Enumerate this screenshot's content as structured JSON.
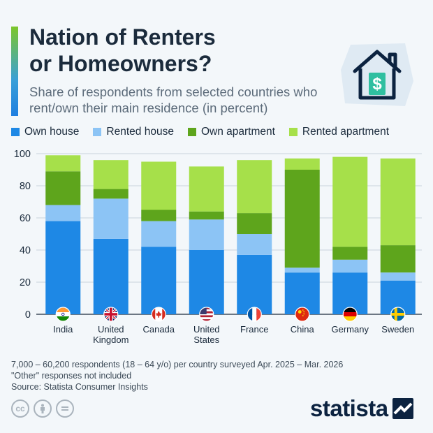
{
  "header": {
    "title": "Nation of Renters\nor Homeowners?",
    "subtitle": "Share of respondents from selected countries who rent/own their main residence (in percent)"
  },
  "icons": {
    "house": "house-dollar-icon",
    "brand": "statista-logo-icon"
  },
  "footer": {
    "note_line1": "7,000 – 60,200 respondents (18 – 64 y/o) per country surveyed Apr. 2025 – Mar. 2026",
    "note_line2": "\"Other\" responses not included",
    "source": "Source: Statista Consumer Insights",
    "brand": "statista",
    "license_icons": [
      "cc-icon",
      "by-icon",
      "nd-icon"
    ]
  },
  "chart_data": {
    "type": "bar",
    "stacked": true,
    "categories": [
      "India",
      "United\nKingdom",
      "Canada",
      "United\nStates",
      "France",
      "China",
      "Germany",
      "Sweden"
    ],
    "flags": [
      "india-flag-icon",
      "uk-flag-icon",
      "canada-flag-icon",
      "usa-flag-icon",
      "france-flag-icon",
      "china-flag-icon",
      "germany-flag-icon",
      "sweden-flag-icon"
    ],
    "series": [
      {
        "name": "Own house",
        "color": "#1e88e5",
        "values": [
          58,
          47,
          42,
          40,
          37,
          26,
          26,
          21
        ]
      },
      {
        "name": "Rented house",
        "color": "#8cc4f5",
        "values": [
          10,
          25,
          16,
          19,
          13,
          3,
          8,
          5
        ]
      },
      {
        "name": "Own apartment",
        "color": "#5ea51c",
        "values": [
          21,
          6,
          7,
          5,
          13,
          61,
          8,
          17
        ]
      },
      {
        "name": "Rented apartment",
        "color": "#a6e04a",
        "values": [
          10,
          18,
          30,
          28,
          33,
          7,
          56,
          54
        ]
      }
    ],
    "yticks": [
      0,
      20,
      40,
      60,
      80,
      100
    ],
    "ylim": [
      0,
      100
    ],
    "grid": true,
    "legend": "top"
  }
}
